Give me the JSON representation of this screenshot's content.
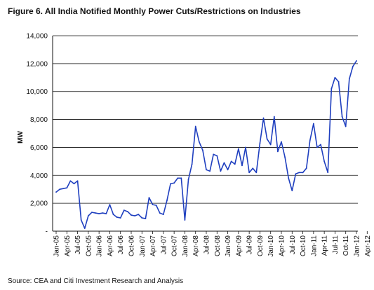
{
  "title": "Figure 6. All India Notified Monthly Power Cuts/Restrictions on Industries",
  "source": "Source: CEA and Citi Investment Research and Analysis",
  "chart_data": {
    "type": "line",
    "ylabel": "MW",
    "xlabel": "",
    "ylim": [
      0,
      14000
    ],
    "y_ticks": [
      0,
      2000,
      4000,
      6000,
      8000,
      10000,
      12000,
      14000
    ],
    "y_tick_labels": [
      "-",
      "2,000",
      "4,000",
      "6,000",
      "8,000",
      "10,000",
      "12,000",
      "14,000"
    ],
    "x_tick_labels": [
      "Jan-05",
      "Apr-05",
      "Jul-05",
      "Oct-05",
      "Jan-06",
      "Apr-06",
      "Jul-06",
      "Oct-06",
      "Jan-07",
      "Apr-07",
      "Jul-07",
      "Oct-07",
      "Jan-08",
      "Apr-08",
      "Jul-08",
      "Oct-08",
      "Jan-09",
      "Apr-09",
      "Jul-09",
      "Oct-09",
      "Jan-10",
      "Apr-10",
      "Jul-10",
      "Oct-10",
      "Jan-11",
      "Apr-11",
      "Jul-11",
      "Oct-11",
      "Jan-12",
      "Apr-12"
    ],
    "grid": "horizontal",
    "color": "#1f3fbf",
    "series": [
      {
        "values": [
          2800,
          3000,
          3050,
          3100,
          3600,
          3400,
          3600,
          800,
          200,
          1100,
          1350,
          1300,
          1250,
          1300,
          1250,
          1900,
          1200,
          1000,
          950,
          1500,
          1400,
          1150,
          1100,
          1200,
          950,
          900,
          2400,
          1900,
          1850,
          1300,
          1200,
          2200,
          3400,
          3450,
          3800,
          3800,
          800,
          3700,
          4800,
          7500,
          6400,
          5800,
          4400,
          4300,
          5500,
          5400,
          4300,
          4900,
          4400,
          5000,
          4800,
          5900,
          4700,
          6000,
          4200,
          4500,
          4200,
          6300,
          8100,
          6600,
          6200,
          8200,
          5700,
          6400,
          5300,
          3800,
          2900,
          4100,
          4200,
          4200,
          4500,
          6500,
          7700,
          6000,
          6200,
          5000,
          4200,
          10200,
          11000,
          10700,
          8200,
          7500,
          10900,
          11800,
          12200
        ]
      }
    ]
  }
}
